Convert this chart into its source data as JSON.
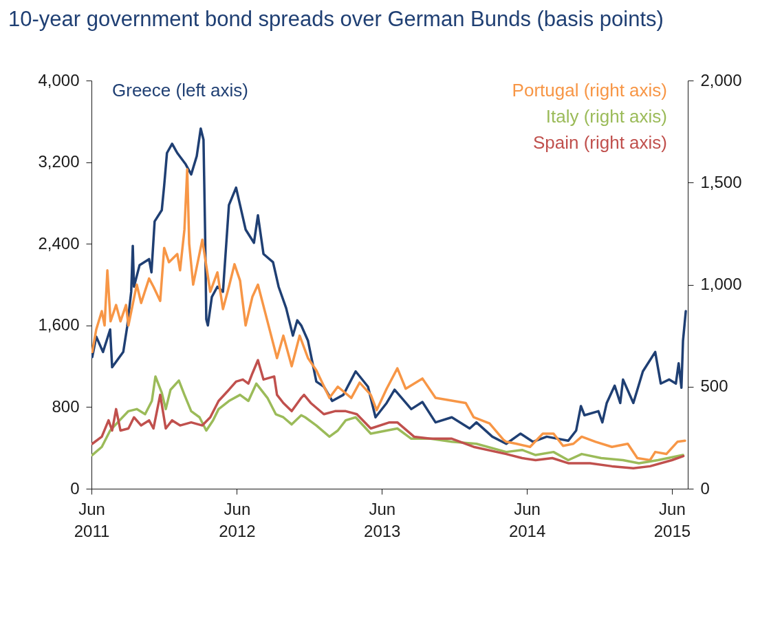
{
  "chart_data": {
    "type": "line",
    "title": "10-year government bond spreads over German Bunds (basis points)",
    "xlim": [
      "2011-06-01",
      "2015-07-11"
    ],
    "xticks": [
      {
        "value": "2011-06-01",
        "label": "Jun 2011"
      },
      {
        "value": "2012-06-01",
        "label": "Jun 2012"
      },
      {
        "value": "2013-06-01",
        "label": "Jun 2013"
      },
      {
        "value": "2014-06-01",
        "label": "Jun 2014"
      },
      {
        "value": "2015-06-01",
        "label": "Jun 2015"
      }
    ],
    "ylim": [
      0,
      4000
    ],
    "yticks": [
      0,
      800,
      {
        "value": 1600,
        "label": "1,600"
      },
      {
        "value": 2400,
        "label": "2,400"
      },
      {
        "value": 3200,
        "label": "3,200"
      },
      {
        "value": 4000,
        "label": "4,000"
      }
    ],
    "y2lim": [
      0,
      2000
    ],
    "y2ticks": [
      0,
      500,
      {
        "value": 1000,
        "label": "1,000"
      },
      {
        "value": 1500,
        "label": "1,500"
      },
      {
        "value": 2000,
        "label": "2,000"
      }
    ],
    "legend": "top",
    "series": [
      {
        "name": "Greece (left axis)",
        "color": "#1f3f73",
        "x": [
          "2011-06-03",
          "2011-06-13",
          "2011-06-30",
          "2011-07-18",
          "2011-07-23",
          "2011-08-20",
          "2011-08-30",
          "2011-09-09",
          "2011-09-13",
          "2011-09-16",
          "2011-09-30",
          "2011-10-24",
          "2011-10-30",
          "2011-11-07",
          "2011-11-25",
          "2011-12-01",
          "2011-12-08",
          "2011-12-21",
          "2012-01-03",
          "2012-01-24",
          "2012-02-07",
          "2012-02-21",
          "2012-03-02",
          "2012-03-09",
          "2012-03-13",
          "2012-03-16",
          "2012-03-20",
          "2012-03-30",
          "2012-04-13",
          "2012-04-27",
          "2012-05-12",
          "2012-05-30",
          "2012-06-09",
          "2012-06-23",
          "2012-07-14",
          "2012-07-24",
          "2012-08-07",
          "2012-08-31",
          "2012-09-14",
          "2012-10-03",
          "2012-10-20",
          "2012-10-31",
          "2012-11-10",
          "2012-11-27",
          "2012-12-18",
          "2013-01-06",
          "2013-01-27",
          "2013-02-24",
          "2013-03-27",
          "2013-04-27",
          "2013-05-16",
          "2013-06-13",
          "2013-07-03",
          "2013-08-14",
          "2013-09-11",
          "2013-10-14",
          "2013-11-24",
          "2014-01-08",
          "2014-01-25",
          "2014-03-06",
          "2014-04-10",
          "2014-05-16",
          "2014-06-16",
          "2014-07-21",
          "2014-09-13",
          "2014-10-03",
          "2014-10-15",
          "2014-10-24",
          "2014-11-28",
          "2014-12-08",
          "2014-12-19",
          "2015-01-08",
          "2015-01-22",
          "2015-01-29",
          "2015-02-24",
          "2015-03-20",
          "2015-04-20",
          "2015-05-04",
          "2015-05-25",
          "2015-06-11",
          "2015-06-18",
          "2015-06-25",
          "2015-06-29",
          "2015-07-06"
        ],
        "values": [
          1290,
          1490,
          1340,
          1560,
          1190,
          1340,
          1590,
          1930,
          2380,
          1980,
          2190,
          2250,
          2120,
          2620,
          2730,
          2970,
          3290,
          3380,
          3290,
          3180,
          3080,
          3260,
          3530,
          3420,
          2520,
          1660,
          1600,
          1880,
          1980,
          1930,
          2780,
          2950,
          2780,
          2540,
          2410,
          2680,
          2300,
          2220,
          1980,
          1770,
          1500,
          1650,
          1600,
          1450,
          1050,
          1000,
          860,
          920,
          1150,
          1000,
          700,
          840,
          970,
          780,
          850,
          650,
          700,
          590,
          650,
          510,
          440,
          540,
          460,
          510,
          470,
          570,
          810,
          720,
          760,
          650,
          840,
          1010,
          840,
          1070,
          840,
          1150,
          1340,
          1030,
          1070,
          1030,
          1230,
          990,
          1450,
          1740
        ]
      },
      {
        "name": "Portugal (right axis)",
        "color": "#f79646",
        "axis": "y2",
        "x": [
          "2011-06-03",
          "2011-06-13",
          "2011-06-27",
          "2011-07-04",
          "2011-07-11",
          "2011-07-19",
          "2011-08-02",
          "2011-08-13",
          "2011-08-27",
          "2011-09-02",
          "2011-09-23",
          "2011-10-04",
          "2011-10-24",
          "2011-11-04",
          "2011-11-21",
          "2011-12-01",
          "2011-12-13",
          "2012-01-03",
          "2012-01-10",
          "2012-01-21",
          "2012-01-28",
          "2012-02-02",
          "2012-02-12",
          "2012-03-06",
          "2012-03-26",
          "2012-04-13",
          "2012-04-27",
          "2012-05-12",
          "2012-05-26",
          "2012-06-09",
          "2012-06-23",
          "2012-07-10",
          "2012-07-24",
          "2012-08-17",
          "2012-09-10",
          "2012-09-26",
          "2012-10-17",
          "2012-11-06",
          "2012-11-27",
          "2012-12-18",
          "2013-01-20",
          "2013-02-10",
          "2013-03-16",
          "2013-04-06",
          "2013-05-04",
          "2013-05-19",
          "2013-06-13",
          "2013-07-10",
          "2013-07-31",
          "2013-09-11",
          "2013-10-14",
          "2013-12-29",
          "2014-01-18",
          "2014-02-27",
          "2014-04-03",
          "2014-04-10",
          "2014-05-06",
          "2014-06-09",
          "2014-07-11",
          "2014-08-07",
          "2014-08-31",
          "2014-09-26",
          "2014-10-17",
          "2014-11-21",
          "2015-01-01",
          "2015-02-10",
          "2015-03-06",
          "2015-04-07",
          "2015-04-20",
          "2015-05-18",
          "2015-06-15",
          "2015-07-04"
        ],
        "values": [
          670,
          780,
          870,
          800,
          1070,
          820,
          900,
          820,
          900,
          800,
          1000,
          910,
          1030,
          990,
          920,
          1180,
          1110,
          1150,
          1070,
          1270,
          1565,
          1200,
          1000,
          1220,
          965,
          1060,
          880,
          990,
          1100,
          1020,
          800,
          940,
          1000,
          820,
          640,
          750,
          600,
          750,
          640,
          580,
          445,
          500,
          445,
          520,
          460,
          385,
          490,
          590,
          490,
          540,
          445,
          420,
          350,
          320,
          240,
          230,
          220,
          205,
          270,
          270,
          210,
          220,
          255,
          230,
          205,
          220,
          150,
          140,
          180,
          170,
          230,
          235
        ]
      },
      {
        "name": "Italy (right axis)",
        "color": "#9bbb59",
        "axis": "y2",
        "x": [
          "2011-06-03",
          "2011-06-27",
          "2011-07-18",
          "2011-08-06",
          "2011-09-02",
          "2011-09-23",
          "2011-10-14",
          "2011-10-31",
          "2011-11-09",
          "2011-11-25",
          "2011-12-05",
          "2011-12-17",
          "2012-01-07",
          "2012-01-21",
          "2012-02-07",
          "2012-02-28",
          "2012-03-16",
          "2012-04-02",
          "2012-04-16",
          "2012-05-12",
          "2012-06-09",
          "2012-06-30",
          "2012-07-20",
          "2012-08-17",
          "2012-09-07",
          "2012-09-26",
          "2012-10-17",
          "2012-11-10",
          "2012-11-20",
          "2012-12-18",
          "2013-01-20",
          "2013-02-10",
          "2013-03-02",
          "2013-03-27",
          "2013-05-04",
          "2013-06-13",
          "2013-07-10",
          "2013-08-14",
          "2013-10-01",
          "2013-11-24",
          "2014-01-25",
          "2014-04-10",
          "2014-05-20",
          "2014-06-23",
          "2014-08-07",
          "2014-09-13",
          "2014-10-17",
          "2014-12-05",
          "2015-01-29",
          "2015-03-10",
          "2015-04-27",
          "2015-06-29"
        ],
        "values": [
          165,
          205,
          285,
          325,
          380,
          390,
          365,
          430,
          550,
          470,
          390,
          485,
          530,
          460,
          380,
          350,
          285,
          335,
          390,
          430,
          460,
          430,
          515,
          445,
          365,
          350,
          315,
          360,
          350,
          310,
          255,
          285,
          335,
          350,
          270,
          285,
          295,
          245,
          245,
          230,
          220,
          180,
          190,
          165,
          180,
          140,
          170,
          150,
          140,
          125,
          140,
          165
        ]
      },
      {
        "name": "Spain (right axis)",
        "color": "#c0504d",
        "axis": "y2",
        "x": [
          "2011-06-03",
          "2011-06-27",
          "2011-07-14",
          "2011-07-23",
          "2011-08-02",
          "2011-08-13",
          "2011-09-02",
          "2011-09-16",
          "2011-10-04",
          "2011-10-24",
          "2011-11-04",
          "2011-11-21",
          "2011-12-05",
          "2011-12-21",
          "2012-01-10",
          "2012-02-07",
          "2012-03-06",
          "2012-03-26",
          "2012-04-16",
          "2012-05-12",
          "2012-05-30",
          "2012-06-16",
          "2012-06-30",
          "2012-07-10",
          "2012-07-24",
          "2012-08-07",
          "2012-09-03",
          "2012-09-10",
          "2012-09-26",
          "2012-10-17",
          "2012-11-10",
          "2012-11-17",
          "2012-12-04",
          "2013-01-06",
          "2013-02-03",
          "2013-03-02",
          "2013-03-30",
          "2013-05-04",
          "2013-06-20",
          "2013-07-10",
          "2013-08-21",
          "2013-10-01",
          "2013-11-24",
          "2014-01-18",
          "2014-04-10",
          "2014-05-20",
          "2014-06-23",
          "2014-08-04",
          "2014-09-13",
          "2014-11-07",
          "2015-01-01",
          "2015-02-24",
          "2015-04-07",
          "2015-06-01",
          "2015-06-30"
        ],
        "values": [
          220,
          255,
          335,
          285,
          390,
          285,
          295,
          350,
          310,
          335,
          295,
          460,
          295,
          335,
          310,
          325,
          310,
          350,
          430,
          485,
          525,
          535,
          515,
          565,
          630,
          535,
          550,
          460,
          420,
          380,
          445,
          460,
          420,
          365,
          380,
          380,
          365,
          295,
          325,
          325,
          255,
          245,
          245,
          205,
          170,
          150,
          140,
          150,
          125,
          125,
          110,
          100,
          110,
          140,
          160
        ]
      }
    ]
  }
}
